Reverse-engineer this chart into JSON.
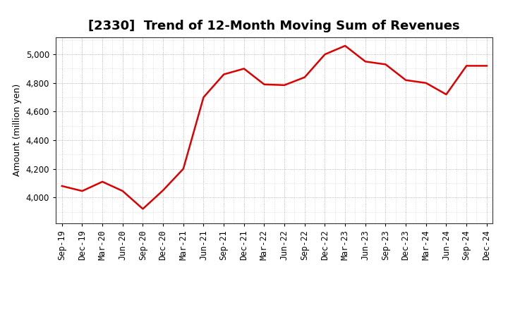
{
  "title": "[2330]  Trend of 12-Month Moving Sum of Revenues",
  "ylabel": "Amount (million yen)",
  "line_color": "#dd0000",
  "background_color": "#ffffff",
  "plot_background": "#ffffff",
  "grid_color": "#999999",
  "labels": [
    "Sep-19",
    "Dec-19",
    "Mar-20",
    "Jun-20",
    "Sep-20",
    "Dec-20",
    "Mar-21",
    "Jun-21",
    "Sep-21",
    "Dec-21",
    "Mar-22",
    "Jun-22",
    "Sep-22",
    "Dec-22",
    "Mar-23",
    "Jun-23",
    "Sep-23",
    "Dec-23",
    "Mar-24",
    "Jun-24",
    "Sep-24",
    "Dec-24"
  ],
  "values": [
    4080,
    4045,
    4110,
    4045,
    3920,
    4050,
    4200,
    4700,
    4860,
    4900,
    4790,
    4785,
    4840,
    5000,
    5060,
    4950,
    4930,
    4820,
    4800,
    4720,
    4920,
    4920
  ],
  "ylim_min": 3820,
  "ylim_max": 5120,
  "yticks": [
    4000,
    4200,
    4400,
    4600,
    4800,
    5000
  ],
  "title_fontsize": 13,
  "axis_fontsize": 9,
  "tick_fontsize": 8.5,
  "linewidth": 1.8
}
